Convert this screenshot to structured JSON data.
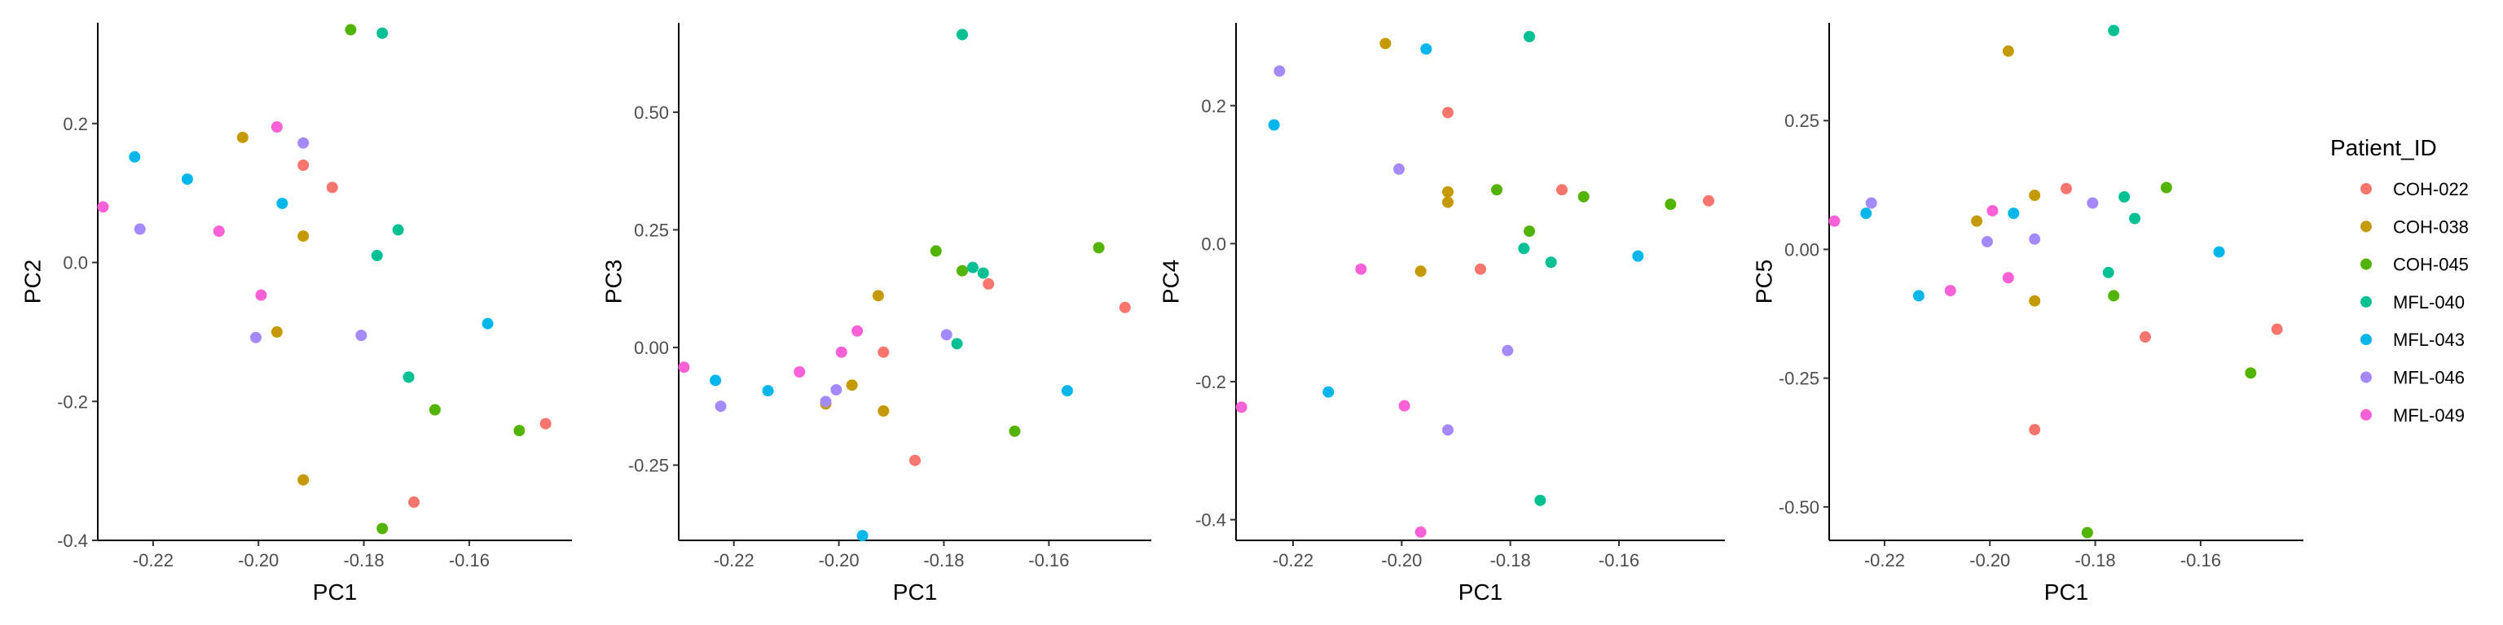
{
  "legend": {
    "title": "Patient_ID",
    "items": [
      {
        "name": "COH-022",
        "color": "#F8766D"
      },
      {
        "name": "COH-038",
        "color": "#C49A00"
      },
      {
        "name": "COH-045",
        "color": "#53B400"
      },
      {
        "name": "MFL-040",
        "color": "#00C094"
      },
      {
        "name": "MFL-043",
        "color": "#00B6EB"
      },
      {
        "name": "MFL-046",
        "color": "#A58AFF"
      },
      {
        "name": "MFL-049",
        "color": "#FB61D7"
      }
    ]
  },
  "chart_data": [
    {
      "type": "scatter",
      "xlabel": "PC1",
      "ylabel": "PC2",
      "xlim": [
        -0.2305,
        -0.1405
      ],
      "ylim": [
        -0.4,
        0.345
      ],
      "xticks": [
        -0.22,
        -0.2,
        -0.18,
        -0.16
      ],
      "xtick_labels": [
        "-0.22",
        "-0.20",
        "-0.18",
        "-0.16"
      ],
      "yticks": [
        -0.4,
        -0.2,
        0.0,
        0.2
      ],
      "ytick_labels": [
        "-0.4",
        "-0.2",
        "0.0",
        "0.2"
      ],
      "grid": false,
      "series": [
        {
          "name": "COH-022",
          "points": [
            [
              -0.1915,
              0.14
            ],
            [
              -0.186,
              0.108
            ],
            [
              -0.1705,
              -0.345
            ],
            [
              -0.1455,
              -0.232
            ]
          ]
        },
        {
          "name": "COH-038",
          "points": [
            [
              -0.203,
              0.18
            ],
            [
              -0.1915,
              0.038
            ],
            [
              -0.1965,
              -0.1
            ],
            [
              -0.1915,
              -0.313
            ]
          ]
        },
        {
          "name": "COH-045",
          "points": [
            [
              -0.1825,
              0.335
            ],
            [
              -0.1665,
              -0.212
            ],
            [
              -0.1505,
              -0.242
            ],
            [
              -0.1765,
              -0.383
            ]
          ]
        },
        {
          "name": "MFL-040",
          "points": [
            [
              -0.1765,
              0.33
            ],
            [
              -0.1735,
              0.047
            ],
            [
              -0.1775,
              0.01
            ],
            [
              -0.1715,
              -0.165
            ]
          ]
        },
        {
          "name": "MFL-043",
          "points": [
            [
              -0.2235,
              0.152
            ],
            [
              -0.2135,
              0.12
            ],
            [
              -0.1955,
              0.085
            ],
            [
              -0.1565,
              -0.088
            ]
          ]
        },
        {
          "name": "MFL-046",
          "points": [
            [
              -0.1915,
              0.172
            ],
            [
              -0.2225,
              0.048
            ],
            [
              -0.2005,
              -0.108
            ],
            [
              -0.1805,
              -0.105
            ]
          ]
        },
        {
          "name": "MFL-049",
          "points": [
            [
              -0.1965,
              0.195
            ],
            [
              -0.2295,
              0.08
            ],
            [
              -0.2075,
              0.045
            ],
            [
              -0.1995,
              -0.047
            ]
          ]
        }
      ]
    },
    {
      "type": "scatter",
      "xlabel": "PC1",
      "ylabel": "PC3",
      "xlim": [
        -0.2305,
        -0.1405
      ],
      "ylim": [
        -0.41,
        0.69
      ],
      "xticks": [
        -0.22,
        -0.2,
        -0.18,
        -0.16
      ],
      "xtick_labels": [
        "-0.22",
        "-0.20",
        "-0.18",
        "-0.16"
      ],
      "yticks": [
        -0.25,
        0.0,
        0.25,
        0.5
      ],
      "ytick_labels": [
        "-0.25",
        "0.00",
        "0.25",
        "0.50"
      ],
      "grid": false,
      "series": [
        {
          "name": "COH-022",
          "points": [
            [
              -0.1455,
              0.085
            ],
            [
              -0.1715,
              0.135
            ],
            [
              -0.1915,
              -0.01
            ],
            [
              -0.1855,
              -0.24
            ]
          ]
        },
        {
          "name": "COH-038",
          "points": [
            [
              -0.1925,
              0.11
            ],
            [
              -0.1975,
              -0.08
            ],
            [
              -0.2025,
              -0.12
            ],
            [
              -0.1915,
              -0.135
            ]
          ]
        },
        {
          "name": "COH-045",
          "points": [
            [
              -0.1815,
              0.205
            ],
            [
              -0.1505,
              0.212
            ],
            [
              -0.1765,
              0.163
            ],
            [
              -0.1665,
              -0.178
            ]
          ]
        },
        {
          "name": "MFL-040",
          "points": [
            [
              -0.1765,
              0.665
            ],
            [
              -0.1745,
              0.17
            ],
            [
              -0.1725,
              0.158
            ],
            [
              -0.1775,
              0.008
            ]
          ]
        },
        {
          "name": "MFL-043",
          "points": [
            [
              -0.2235,
              -0.07
            ],
            [
              -0.2135,
              -0.092
            ],
            [
              -0.1565,
              -0.092
            ],
            [
              -0.1955,
              -0.4
            ]
          ]
        },
        {
          "name": "MFL-046",
          "points": [
            [
              -0.1795,
              0.027
            ],
            [
              -0.2005,
              -0.09
            ],
            [
              -0.2225,
              -0.125
            ],
            [
              -0.2025,
              -0.115
            ]
          ]
        },
        {
          "name": "MFL-049",
          "points": [
            [
              -0.2295,
              -0.042
            ],
            [
              -0.2075,
              -0.052
            ],
            [
              -0.1995,
              -0.01
            ],
            [
              -0.1965,
              0.035
            ]
          ]
        }
      ]
    },
    {
      "type": "scatter",
      "xlabel": "PC1",
      "ylabel": "PC4",
      "xlim": [
        -0.2305,
        -0.1405
      ],
      "ylim": [
        -0.43,
        0.32
      ],
      "xticks": [
        -0.22,
        -0.2,
        -0.18,
        -0.16
      ],
      "xtick_labels": [
        "-0.22",
        "-0.20",
        "-0.18",
        "-0.16"
      ],
      "yticks": [
        -0.4,
        -0.2,
        0.0,
        0.2
      ],
      "ytick_labels": [
        "-0.4",
        "-0.2",
        "0.0",
        "0.2"
      ],
      "grid": false,
      "series": [
        {
          "name": "COH-022",
          "points": [
            [
              -0.1915,
              0.19
            ],
            [
              -0.1705,
              0.078
            ],
            [
              -0.1435,
              0.062
            ],
            [
              -0.1855,
              -0.037
            ]
          ]
        },
        {
          "name": "COH-038",
          "points": [
            [
              -0.203,
              0.29
            ],
            [
              -0.1915,
              0.075
            ],
            [
              -0.1915,
              0.06
            ],
            [
              -0.1965,
              -0.04
            ]
          ]
        },
        {
          "name": "COH-045",
          "points": [
            [
              -0.1825,
              0.078
            ],
            [
              -0.1665,
              0.068
            ],
            [
              -0.1505,
              0.057
            ],
            [
              -0.1765,
              0.018
            ]
          ]
        },
        {
          "name": "MFL-040",
          "points": [
            [
              -0.1765,
              0.3
            ],
            [
              -0.1775,
              -0.007
            ],
            [
              -0.1725,
              -0.027
            ],
            [
              -0.1745,
              -0.372
            ]
          ]
        },
        {
          "name": "MFL-043",
          "points": [
            [
              -0.1955,
              0.282
            ],
            [
              -0.2235,
              0.172
            ],
            [
              -0.1565,
              -0.018
            ],
            [
              -0.2135,
              -0.215
            ]
          ]
        },
        {
          "name": "MFL-046",
          "points": [
            [
              -0.2225,
              0.25
            ],
            [
              -0.2005,
              0.108
            ],
            [
              -0.1805,
              -0.155
            ],
            [
              -0.1915,
              -0.27
            ]
          ]
        },
        {
          "name": "MFL-049",
          "points": [
            [
              -0.2075,
              -0.037
            ],
            [
              -0.2295,
              -0.237
            ],
            [
              -0.1995,
              -0.235
            ],
            [
              -0.1965,
              -0.418
            ]
          ]
        }
      ]
    },
    {
      "type": "scatter",
      "xlabel": "PC1",
      "ylabel": "PC5",
      "xlim": [
        -0.2305,
        -0.1405
      ],
      "ylim": [
        -0.565,
        0.44
      ],
      "xticks": [
        -0.22,
        -0.2,
        -0.18,
        -0.16
      ],
      "xtick_labels": [
        "-0.22",
        "-0.20",
        "-0.18",
        "-0.16"
      ],
      "yticks": [
        -0.5,
        -0.25,
        0.0,
        0.25
      ],
      "ytick_labels": [
        "-0.50",
        "-0.25",
        "0.00",
        "0.25"
      ],
      "grid": false,
      "series": [
        {
          "name": "COH-022",
          "points": [
            [
              -0.1855,
              0.118
            ],
            [
              -0.1705,
              -0.17
            ],
            [
              -0.1455,
              -0.155
            ],
            [
              -0.1915,
              -0.35
            ]
          ]
        },
        {
          "name": "COH-038",
          "points": [
            [
              -0.1965,
              0.385
            ],
            [
              -0.1915,
              0.105
            ],
            [
              -0.2025,
              0.055
            ],
            [
              -0.1915,
              -0.1
            ]
          ]
        },
        {
          "name": "COH-045",
          "points": [
            [
              -0.1665,
              0.12
            ],
            [
              -0.1765,
              -0.09
            ],
            [
              -0.1505,
              -0.24
            ],
            [
              -0.1815,
              -0.55
            ]
          ]
        },
        {
          "name": "MFL-040",
          "points": [
            [
              -0.1765,
              0.425
            ],
            [
              -0.1745,
              0.102
            ],
            [
              -0.1725,
              0.06
            ],
            [
              -0.1775,
              -0.045
            ]
          ]
        },
        {
          "name": "MFL-043",
          "points": [
            [
              -0.2235,
              0.07
            ],
            [
              -0.1955,
              0.07
            ],
            [
              -0.1565,
              -0.005
            ],
            [
              -0.2135,
              -0.09
            ]
          ]
        },
        {
          "name": "MFL-046",
          "points": [
            [
              -0.2225,
              0.09
            ],
            [
              -0.1805,
              0.09
            ],
            [
              -0.1915,
              0.02
            ],
            [
              -0.2005,
              0.015
            ]
          ]
        },
        {
          "name": "MFL-049",
          "points": [
            [
              -0.2295,
              0.055
            ],
            [
              -0.1995,
              0.075
            ],
            [
              -0.1965,
              -0.055
            ],
            [
              -0.2075,
              -0.08
            ]
          ]
        }
      ]
    }
  ]
}
